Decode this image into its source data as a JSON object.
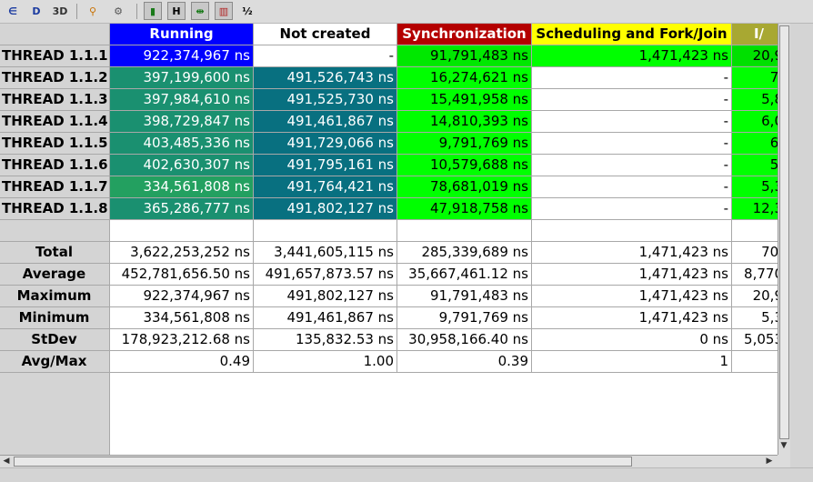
{
  "toolbar": {
    "buttons": [
      {
        "name": "histogram-icon",
        "glyph": "∈"
      },
      {
        "name": "data-icon",
        "glyph": "D"
      },
      {
        "name": "3d-icon",
        "glyph": "3D"
      },
      {
        "name": "zoom-icon",
        "glyph": "⚲"
      },
      {
        "name": "find-icon",
        "glyph": "⚙"
      },
      {
        "name": "colors-icon",
        "glyph": "▮"
      },
      {
        "name": "horizontal-icon",
        "glyph": "H"
      },
      {
        "name": "fit-icon",
        "glyph": "⇹"
      },
      {
        "name": "gradient-icon",
        "glyph": "▥"
      },
      {
        "name": "fraction-icon",
        "glyph": "½"
      }
    ]
  },
  "columns": [
    {
      "label": "Running",
      "bg": "#0000ff",
      "fg": "#ffffff"
    },
    {
      "label": "Not created",
      "bg": "#ffffff",
      "fg": "#000000"
    },
    {
      "label": "Synchronization",
      "bg": "#b40000",
      "fg": "#ffffff"
    },
    {
      "label": "Scheduling and Fork/Join",
      "bg": "#ffff00",
      "fg": "#000000"
    },
    {
      "label": "I/",
      "bg": "#a8a832",
      "fg": "#ffffff"
    }
  ],
  "rows": [
    {
      "label": "THREAD 1.1.1",
      "cells": [
        "922,374,967 ns",
        "-",
        "91,791,483 ns",
        "1,471,423 ns",
        "20,9"
      ]
    },
    {
      "label": "THREAD 1.1.2",
      "cells": [
        "397,199,600 ns",
        "491,526,743 ns",
        "16,274,621 ns",
        "-",
        "7,"
      ]
    },
    {
      "label": "THREAD 1.1.3",
      "cells": [
        "397,984,610 ns",
        "491,525,730 ns",
        "15,491,958 ns",
        "-",
        "5,8"
      ]
    },
    {
      "label": "THREAD 1.1.4",
      "cells": [
        "398,729,847 ns",
        "491,461,867 ns",
        "14,810,393 ns",
        "-",
        "6,0"
      ]
    },
    {
      "label": "THREAD 1.1.5",
      "cells": [
        "403,485,336 ns",
        "491,729,066 ns",
        "9,791,769 ns",
        "-",
        "6,"
      ]
    },
    {
      "label": "THREAD 1.1.6",
      "cells": [
        "402,630,307 ns",
        "491,795,161 ns",
        "10,579,688 ns",
        "-",
        "5,"
      ]
    },
    {
      "label": "THREAD 1.1.7",
      "cells": [
        "334,561,808 ns",
        "491,764,421 ns",
        "78,681,019 ns",
        "-",
        "5,3"
      ]
    },
    {
      "label": "THREAD 1.1.8",
      "cells": [
        "365,286,777 ns",
        "491,802,127 ns",
        "47,918,758 ns",
        "-",
        "12,3"
      ]
    }
  ],
  "cell_colors": [
    [
      "#0000ff",
      "#ffffff",
      "#00e800",
      "#00ff00",
      "#00e000"
    ],
    [
      "#1a9070",
      "#087080",
      "#00ff00",
      "#ffffff",
      "#00ff00"
    ],
    [
      "#1a9070",
      "#087080",
      "#00ff00",
      "#ffffff",
      "#00ff00"
    ],
    [
      "#1a9070",
      "#087080",
      "#00ff00",
      "#ffffff",
      "#00ff00"
    ],
    [
      "#1a9070",
      "#087080",
      "#00ff00",
      "#ffffff",
      "#00ff00"
    ],
    [
      "#1a9070",
      "#087080",
      "#00ff00",
      "#ffffff",
      "#00ff00"
    ],
    [
      "#23a060",
      "#087080",
      "#00ff00",
      "#ffffff",
      "#00ff00"
    ],
    [
      "#1a9070",
      "#087080",
      "#00ff00",
      "#ffffff",
      "#00ff00"
    ]
  ],
  "stats": [
    {
      "label": "Total",
      "cells": [
        "3,622,253,252 ns",
        "3,441,605,115 ns",
        "285,339,689 ns",
        "1,471,423 ns",
        "70,"
      ]
    },
    {
      "label": "Average",
      "cells": [
        "452,781,656.50 ns",
        "491,657,873.57 ns",
        "35,667,461.12 ns",
        "1,471,423 ns",
        "8,770"
      ]
    },
    {
      "label": "Maximum",
      "cells": [
        "922,374,967 ns",
        "491,802,127 ns",
        "91,791,483 ns",
        "1,471,423 ns",
        "20,9"
      ]
    },
    {
      "label": "Minimum",
      "cells": [
        "334,561,808 ns",
        "491,461,867 ns",
        "9,791,769 ns",
        "1,471,423 ns",
        "5,3"
      ]
    },
    {
      "label": "StDev",
      "cells": [
        "178,923,212.68 ns",
        "135,832.53 ns",
        "30,958,166.40 ns",
        "0 ns",
        "5,053"
      ]
    },
    {
      "label": "Avg/Max",
      "cells": [
        "0.49",
        "1.00",
        "0.39",
        "1",
        ""
      ]
    }
  ]
}
